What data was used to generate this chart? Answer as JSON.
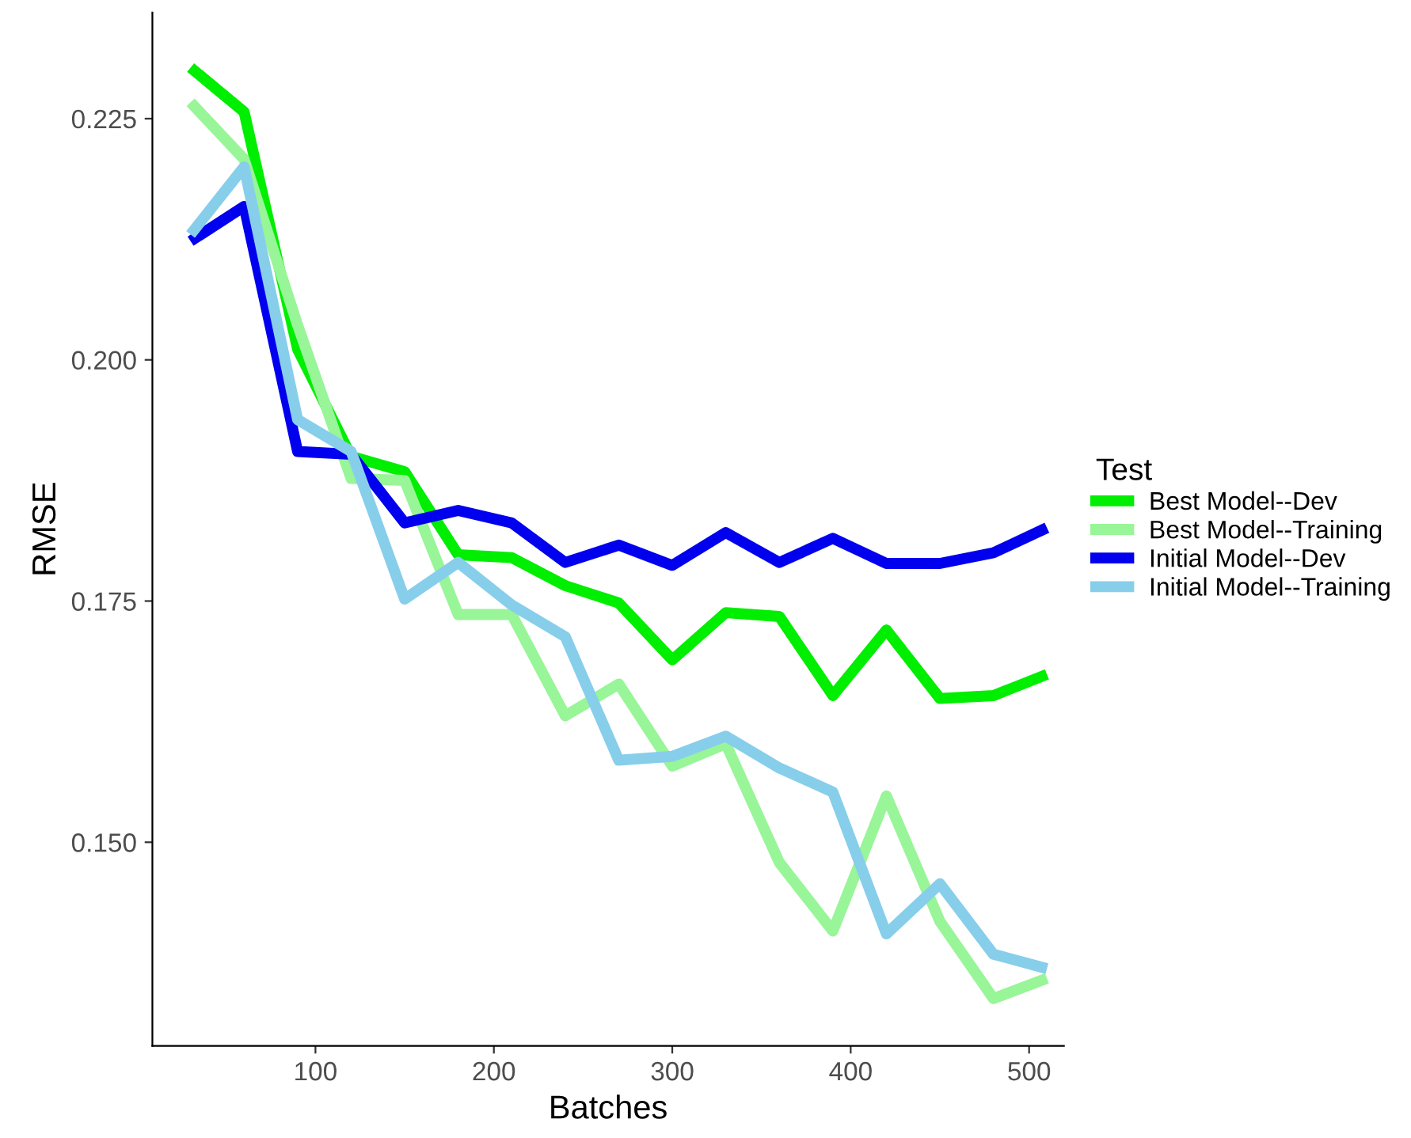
{
  "chart_data": {
    "type": "line",
    "xlabel": "Batches",
    "ylabel": "RMSE",
    "legend_title": "Test",
    "legend": "right",
    "grid": false,
    "marker": "none",
    "line_style": "solid",
    "x": [
      30,
      60,
      90,
      120,
      150,
      180,
      210,
      240,
      270,
      300,
      330,
      360,
      390,
      420,
      450,
      480,
      510
    ],
    "xlim": [
      8.6,
      519.5
    ],
    "xticks": [
      100,
      200,
      300,
      400,
      500
    ],
    "ylim": [
      0.1289,
      0.236
    ],
    "yticks": [
      {
        "value": 0.15,
        "label": "0.150"
      },
      {
        "value": 0.175,
        "label": "0.175"
      },
      {
        "value": 0.2,
        "label": "0.200"
      },
      {
        "value": 0.225,
        "label": "0.225"
      }
    ],
    "series": [
      {
        "name": "Best Model--Dev",
        "color": "#00ee00",
        "values": [
          0.2303,
          0.2257,
          0.2011,
          0.19,
          0.1884,
          0.1798,
          0.1795,
          0.1766,
          0.1748,
          0.1689,
          0.1738,
          0.1734,
          0.1652,
          0.172,
          0.1649,
          0.1652,
          0.1674
        ]
      },
      {
        "name": "Best Model--Training",
        "color": "#98f598",
        "values": [
          0.2267,
          0.2208,
          0.2036,
          0.1877,
          0.1875,
          0.1736,
          0.1736,
          0.1631,
          0.1664,
          0.1579,
          0.1602,
          0.1479,
          0.1408,
          0.1548,
          0.1418,
          0.1338,
          0.1359
        ]
      },
      {
        "name": "Initial Model--Dev",
        "color": "#0000ee",
        "values": [
          0.2123,
          0.2159,
          0.1905,
          0.1902,
          0.1831,
          0.1844,
          0.1831,
          0.179,
          0.1808,
          0.1787,
          0.1821,
          0.179,
          0.1815,
          0.1789,
          0.1789,
          0.18,
          0.1826
        ]
      },
      {
        "name": "Initial Model--Training",
        "color": "#87ceeb",
        "values": [
          0.213,
          0.22,
          0.1938,
          0.1905,
          0.1752,
          0.179,
          0.1746,
          0.1713,
          0.1585,
          0.1589,
          0.161,
          0.1577,
          0.1552,
          0.1405,
          0.1457,
          0.1384,
          0.1369
        ]
      }
    ]
  }
}
